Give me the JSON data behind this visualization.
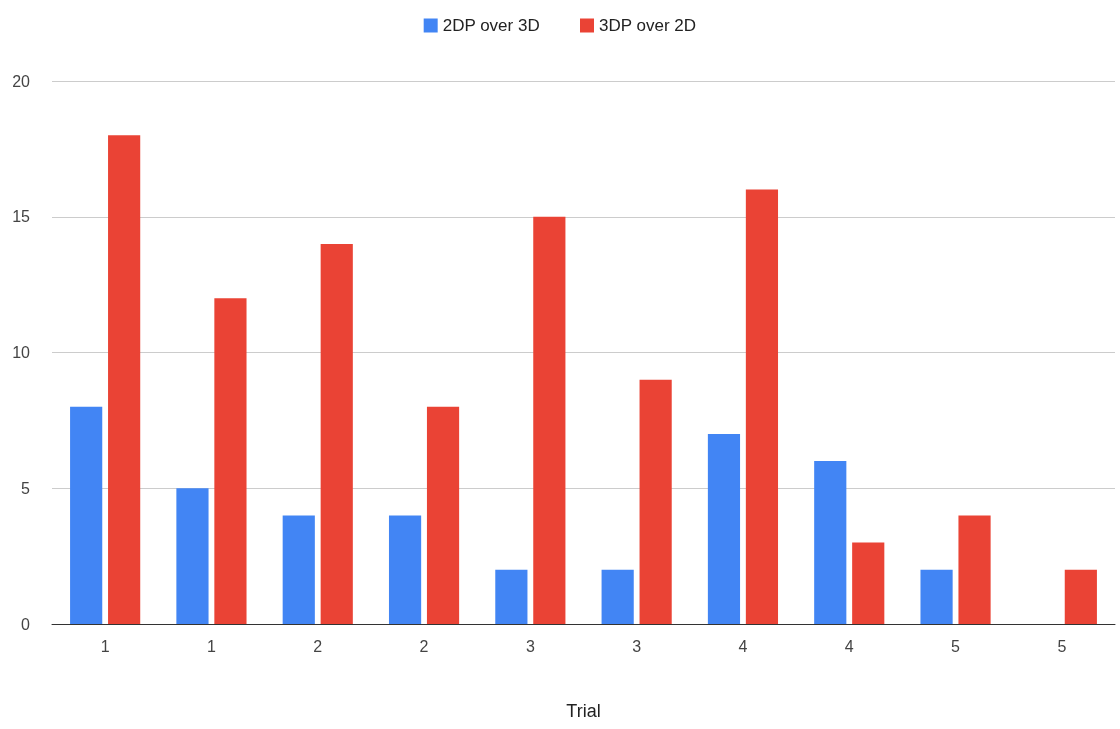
{
  "chart_data": {
    "type": "bar",
    "xlabel": "Trial",
    "categories": [
      "1",
      "1",
      "2",
      "2",
      "3",
      "3",
      "4",
      "4",
      "5",
      "5"
    ],
    "series": [
      {
        "name": "2DP over 3D",
        "color": "#4285f4",
        "values": [
          8,
          5,
          4,
          4,
          2,
          2,
          7,
          6,
          2,
          0
        ]
      },
      {
        "name": "3DP over 2D",
        "color": "#ea4335",
        "values": [
          18,
          12,
          14,
          8,
          15,
          9,
          16,
          3,
          4,
          2
        ]
      }
    ],
    "ylim": [
      0,
      20
    ],
    "yticks": [
      0,
      5,
      10,
      15,
      20
    ],
    "grid": "y",
    "legend": "top"
  }
}
